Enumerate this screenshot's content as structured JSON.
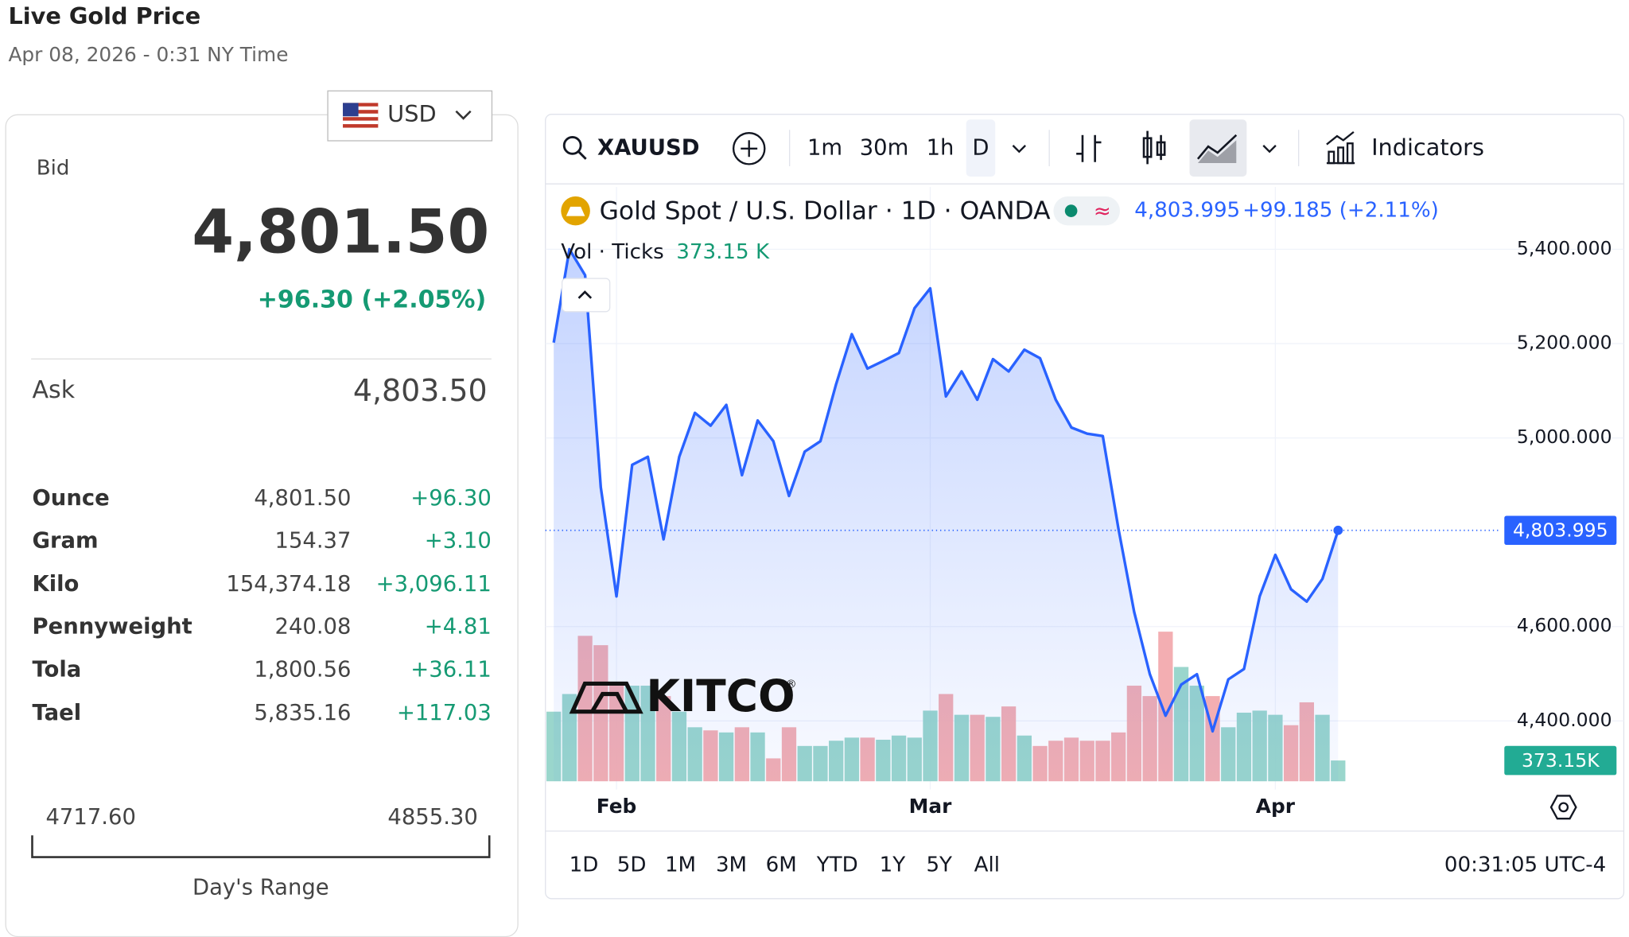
{
  "header": {
    "title": "Live Gold Price",
    "subtitle": "Apr 08, 2026 - 0:31 NY Time"
  },
  "currency": "USD",
  "quote": {
    "bid_label": "Bid",
    "bid": "4,801.50",
    "change": "+96.30 (+2.05%)",
    "ask_label": "Ask",
    "ask": "4,803.50"
  },
  "units": {
    "rows": [
      [
        "Ounce",
        "4,801.50",
        "+96.30"
      ],
      [
        "Gram",
        "154.37",
        "+3.10"
      ],
      [
        "Kilo",
        "154,374.18",
        "+3,096.11"
      ],
      [
        "Pennyweight",
        "240.08",
        "+4.81"
      ],
      [
        "Tola",
        "1,800.56",
        "+36.11"
      ],
      [
        "Tael",
        "5,835.16",
        "+117.03"
      ]
    ]
  },
  "day_range": {
    "low": "4717.60",
    "high": "4855.30",
    "label": "Day's Range"
  },
  "toolbar": {
    "symbol": "XAUUSD",
    "intervals": [
      "1m",
      "30m",
      "1h",
      "D"
    ],
    "indicators": "Indicators"
  },
  "footer": {
    "ranges": [
      "1D",
      "5D",
      "1M",
      "3M",
      "6M",
      "YTD",
      "1Y",
      "5Y",
      "All"
    ],
    "time": "00:31:05 UTC-4"
  },
  "chart_data": {
    "type": "line",
    "watermark": "KITCO",
    "watermark_mark": "®",
    "legend": {
      "price": "4,803.995",
      "change": "+99.185 (+2.11%)"
    },
    "categories": [
      null,
      null,
      null,
      null,
      "Feb",
      null,
      null,
      null,
      null,
      null,
      null,
      null,
      null,
      null,
      null,
      null,
      null,
      null,
      null,
      null,
      null,
      null,
      null,
      null,
      "Mar",
      null,
      null,
      null,
      null,
      null,
      null,
      null,
      null,
      null,
      null,
      null,
      null,
      null,
      null,
      null,
      null,
      null,
      null,
      null,
      null,
      null,
      "Apr",
      null,
      null,
      null,
      null
    ],
    "series": [
      {
        "name": "Gold Spot / U.S. Dollar · 1D · OANDA",
        "color": "#2962ff",
        "values": [
          5202,
          5400,
          5345,
          4895,
          4664,
          4943,
          4960,
          4785,
          4960,
          5053,
          5026,
          5070,
          4921,
          5037,
          4993,
          4877,
          4971,
          4993,
          5114,
          5220,
          5147,
          5163,
          5180,
          5275,
          5317,
          5088,
          5141,
          5081,
          5167,
          5141,
          5187,
          5169,
          5081,
          5022,
          5009,
          5004,
          4807,
          4631,
          4499,
          4411,
          4477,
          4499,
          4378,
          4488,
          4510,
          4664,
          4752,
          4679,
          4653,
          4701,
          4803.995
        ]
      }
    ],
    "volume": {
      "name": "Vol · Ticks",
      "legend_value": "373.15 K",
      "badge": "373.15K",
      "up_color": "#8fd2c6",
      "down_color": "#f2a5aa",
      "ylim": [
        0,
        10674
      ],
      "values": [
        1250,
        1567,
        2612,
        2444,
        1717,
        1717,
        1717,
        1530,
        1250,
        970,
        914,
        877,
        970,
        877,
        411,
        970,
        634,
        634,
        728,
        784,
        784,
        746,
        821,
        784,
        1269,
        1567,
        1194,
        1194,
        1157,
        1344,
        821,
        634,
        728,
        784,
        728,
        728,
        877,
        1717,
        1530,
        2687,
        2053,
        1717,
        1530,
        970,
        1232,
        1269,
        1194,
        1007,
        1418,
        1194,
        373.15
      ]
    },
    "ylim": [
      4272,
      5532
    ],
    "yticks": [
      {
        "value": 4400,
        "label": "4,400.000"
      },
      {
        "value": 4600,
        "label": "4,600.000"
      },
      {
        "value": 5000,
        "label": "5,000.000"
      },
      {
        "value": 5200,
        "label": "5,200.000"
      },
      {
        "value": 5400,
        "label": "5,400.000"
      }
    ],
    "grid": true
  }
}
